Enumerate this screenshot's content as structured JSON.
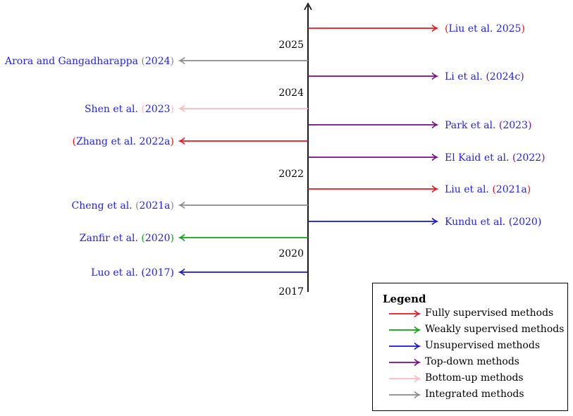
{
  "years": [
    "2025",
    "2024",
    "2022",
    "2020",
    "2017"
  ],
  "colors": {
    "fully_supervised": "#e8141b",
    "weakly_supervised": "#10a010",
    "unsupervised": "#1515d6",
    "top_down": "#7a0a8a",
    "bottom_up": "#ffb8c0",
    "integrated": "#8a8a8a",
    "citation_text": "#2222ee",
    "axis": "#000000"
  },
  "entries": [
    {
      "side": "right",
      "type": "fully_supervised",
      "open": "(",
      "authors": "Liu et al. ",
      "year": "2025",
      "close": ")"
    },
    {
      "side": "left",
      "type": "integrated",
      "open": "",
      "authors": "Arora and Gangadharappa ",
      "year": "2024",
      "close": ""
    },
    {
      "side": "right",
      "type": "top_down",
      "open": "",
      "authors": "Li et al. ",
      "year": "2024c",
      "close": ""
    },
    {
      "side": "left",
      "type": "bottom_up",
      "open": "",
      "authors": "Shen et al. ",
      "year": "2023",
      "close": ""
    },
    {
      "side": "right",
      "type": "top_down",
      "open": "",
      "authors": "Park et al. ",
      "year": "2023",
      "close": ""
    },
    {
      "side": "left",
      "type": "fully_supervised",
      "open": "(",
      "authors": "Zhang et al. ",
      "year": "2022a",
      "close": ")"
    },
    {
      "side": "right",
      "type": "top_down",
      "open": "",
      "authors": "El Kaid et al. ",
      "year": "2022",
      "close": ""
    },
    {
      "side": "right",
      "type": "fully_supervised",
      "open": "",
      "authors": "Liu et al. ",
      "year": "2021a",
      "close": ""
    },
    {
      "side": "left",
      "type": "integrated",
      "open": "",
      "authors": "Cheng et al. ",
      "year": "2021a",
      "close": ""
    },
    {
      "side": "right",
      "type": "unsupervised",
      "open": "",
      "authors": "Kundu et al. ",
      "year": "2020",
      "close": ""
    },
    {
      "side": "left",
      "type": "weakly_supervised",
      "open": "",
      "authors": "Zanfir et al. ",
      "year": "2020",
      "close": ""
    },
    {
      "side": "left",
      "type": "unsupervised",
      "open": "",
      "authors": "Luo et al. ",
      "year": "2017",
      "close": ""
    }
  ],
  "legend": {
    "title": "Legend",
    "items": [
      {
        "type": "fully_supervised",
        "label": "Fully supervised methods"
      },
      {
        "type": "weakly_supervised",
        "label": "Weakly supervised methods"
      },
      {
        "type": "unsupervised",
        "label": "Unsupervised methods"
      },
      {
        "type": "top_down",
        "label": "Top-down methods"
      },
      {
        "type": "bottom_up",
        "label": "Bottom-up methods"
      },
      {
        "type": "integrated",
        "label": "Integrated methods"
      }
    ]
  }
}
